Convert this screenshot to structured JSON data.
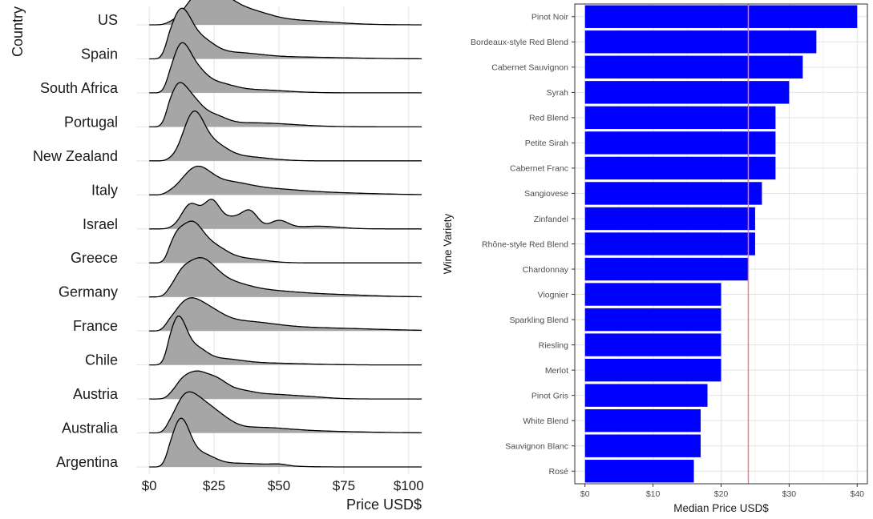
{
  "chart_data": [
    {
      "type": "ridgeline",
      "title": "",
      "xlabel": "Price USD$",
      "ylabel": "Country",
      "xlim": [
        -5,
        105
      ],
      "x_ticks": [
        0,
        25,
        50,
        75,
        100
      ],
      "x_tick_labels": [
        "$0",
        "$25",
        "$50",
        "$75",
        "$100"
      ],
      "grid": true,
      "fill_color": "#a6a6a6",
      "categories": [
        "Argentina",
        "Australia",
        "Austria",
        "Chile",
        "France",
        "Germany",
        "Greece",
        "Israel",
        "Italy",
        "New Zealand",
        "Portugal",
        "South Africa",
        "Spain",
        "US"
      ],
      "series": [
        {
          "name": "Argentina",
          "peaks": [
            [
              12,
              1.0,
              3.5
            ],
            [
              20,
              0.25,
              5
            ],
            [
              35,
              0.08,
              12
            ],
            [
              50,
              0.03,
              3
            ]
          ]
        },
        {
          "name": "Australia",
          "peaks": [
            [
              13,
              0.55,
              4
            ],
            [
              19,
              0.55,
              5
            ],
            [
              27,
              0.25,
              5
            ],
            [
              40,
              0.1,
              12
            ],
            [
              60,
              0.04,
              20
            ]
          ]
        },
        {
          "name": "Austria",
          "peaks": [
            [
              18,
              0.55,
              4.5
            ],
            [
              12,
              0.2,
              3
            ],
            [
              26,
              0.3,
              4
            ],
            [
              34,
              0.18,
              6
            ],
            [
              47,
              0.08,
              7
            ],
            [
              60,
              0.05,
              8
            ]
          ]
        },
        {
          "name": "Chile",
          "peaks": [
            [
              11,
              1.0,
              3.2
            ],
            [
              18,
              0.3,
              4
            ],
            [
              27,
              0.12,
              8
            ],
            [
              45,
              0.04,
              15
            ]
          ]
        },
        {
          "name": "France",
          "peaks": [
            [
              14,
              0.5,
              5
            ],
            [
              22,
              0.35,
              6
            ],
            [
              35,
              0.17,
              12
            ],
            [
              60,
              0.07,
              25
            ]
          ]
        },
        {
          "name": "Germany",
          "peaks": [
            [
              19,
              0.75,
              6
            ],
            [
              12,
              0.2,
              3
            ],
            [
              30,
              0.25,
              8
            ],
            [
              45,
              0.12,
              12
            ],
            [
              70,
              0.05,
              15
            ]
          ]
        },
        {
          "name": "Greece",
          "peaks": [
            [
              16,
              0.85,
              4.5
            ],
            [
              10,
              0.3,
              2.5
            ],
            [
              25,
              0.3,
              5
            ],
            [
              36,
              0.1,
              8
            ]
          ]
        },
        {
          "name": "Israel",
          "peaks": [
            [
              16,
              0.55,
              3.5
            ],
            [
              24,
              0.55,
              3
            ],
            [
              32,
              0.25,
              5
            ],
            [
              39,
              0.32,
              3
            ],
            [
              50,
              0.18,
              3.5
            ],
            [
              65,
              0.06,
              8
            ]
          ]
        },
        {
          "name": "Italy",
          "peaks": [
            [
              18,
              0.55,
              5.5
            ],
            [
              30,
              0.22,
              8
            ],
            [
              45,
              0.1,
              12
            ],
            [
              65,
              0.05,
              20
            ]
          ]
        },
        {
          "name": "New Zealand",
          "peaks": [
            [
              17,
              1.0,
              4
            ],
            [
              25,
              0.3,
              5
            ],
            [
              35,
              0.1,
              10
            ]
          ]
        },
        {
          "name": "Portugal",
          "peaks": [
            [
              11,
              0.85,
              3.5
            ],
            [
              17,
              0.4,
              3.5
            ],
            [
              24,
              0.22,
              5
            ],
            [
              40,
              0.09,
              15
            ]
          ]
        },
        {
          "name": "South Africa",
          "peaks": [
            [
              12,
              0.95,
              3.5
            ],
            [
              18,
              0.4,
              4
            ],
            [
              26,
              0.18,
              6
            ],
            [
              40,
              0.07,
              12
            ]
          ]
        },
        {
          "name": "Spain",
          "peaks": [
            [
              12,
              1.0,
              4
            ],
            [
              20,
              0.35,
              5
            ],
            [
              32,
              0.12,
              10
            ],
            [
              55,
              0.04,
              20
            ]
          ]
        },
        {
          "name": "US",
          "peaks": [
            [
              19,
              0.55,
              5.5
            ],
            [
              27,
              0.45,
              6
            ],
            [
              38,
              0.25,
              8
            ],
            [
              55,
              0.1,
              15
            ]
          ]
        }
      ]
    },
    {
      "type": "bar",
      "orientation": "horizontal",
      "title": "",
      "xlabel": "Median Price USD$",
      "ylabel": "Wine Variety",
      "xlim": [
        -1.5,
        41.5
      ],
      "x_ticks": [
        0,
        10,
        20,
        30,
        40
      ],
      "x_tick_labels": [
        "$0",
        "$10",
        "$20",
        "$30",
        "$40"
      ],
      "grid": true,
      "bar_color": "#0000ff",
      "reference_line": {
        "x": 24,
        "color": "#f08080"
      },
      "categories": [
        "Pinot Noir",
        "Bordeaux-style Red Blend",
        "Cabernet Sauvignon",
        "Syrah",
        "Red Blend",
        "Petite Sirah",
        "Cabernet Franc",
        "Sangiovese",
        "Zinfandel",
        "Rhône-style Red Blend",
        "Chardonnay",
        "Viognier",
        "Sparkling Blend",
        "Riesling",
        "Merlot",
        "Pinot Gris",
        "White Blend",
        "Sauvignon Blanc",
        "Rosé"
      ],
      "values": [
        40,
        34,
        32,
        30,
        28,
        28,
        28,
        26,
        25,
        25,
        24,
        20,
        20,
        20,
        20,
        18,
        17,
        17,
        16
      ]
    }
  ]
}
